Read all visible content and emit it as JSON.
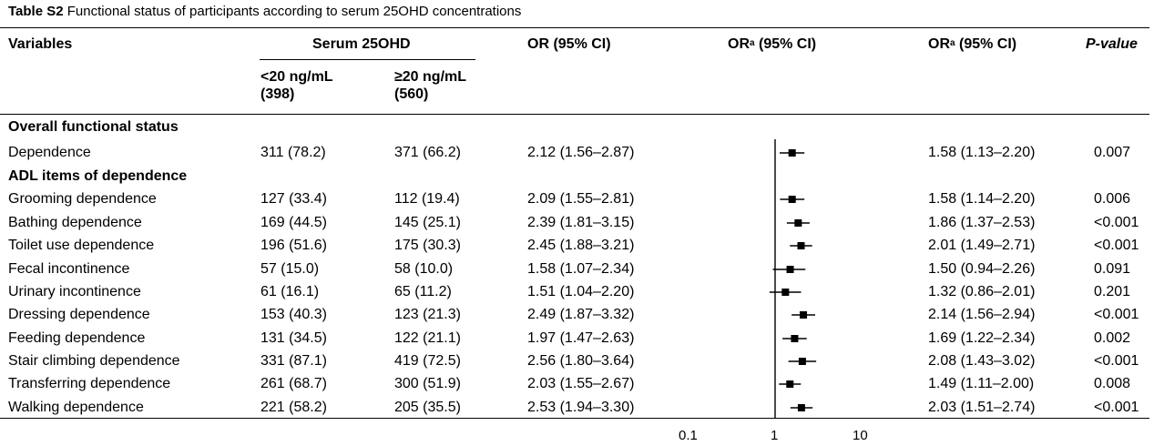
{
  "caption": {
    "label": "Table S2",
    "text": "Functional status of participants according to serum 25OHD concentrations"
  },
  "headers": {
    "variables": "Variables",
    "serum": "Serum 25OHD",
    "or_ci": "OR (95% CI)",
    "ora_forest_main": "OR",
    "ora_forest_sup": "a",
    "ora_forest_rest": " (95% CI)",
    "ora_main": "OR",
    "ora_sup": "a",
    "ora_rest": " (95% CI)",
    "pvalue": "P-value",
    "lt20_line1": "<20 ng/mL",
    "lt20_line2": "(398)",
    "ge20_line1": "≥20 ng/mL",
    "ge20_line2": "(560)"
  },
  "sections": {
    "overall": "Overall functional status",
    "adl": "ADL items of dependence"
  },
  "rows": [
    {
      "name": "Dependence",
      "lt20": "311 (78.2)",
      "ge20": "371 (66.2)",
      "or": "2.12 (1.56–2.87)",
      "ora": "1.58 (1.13–2.20)",
      "p": "0.007",
      "est": 1.58,
      "lo": 1.13,
      "hi": 2.2
    },
    {
      "name": "Grooming dependence",
      "lt20": "127 (33.4)",
      "ge20": "112 (19.4)",
      "or": "2.09 (1.55–2.81)",
      "ora": "1.58 (1.14–2.20)",
      "p": "0.006",
      "est": 1.58,
      "lo": 1.14,
      "hi": 2.2
    },
    {
      "name": "Bathing dependence",
      "lt20": "169 (44.5)",
      "ge20": "145 (25.1)",
      "or": "2.39 (1.81–3.15)",
      "ora": "1.86 (1.37–2.53)",
      "p": "<0.001",
      "est": 1.86,
      "lo": 1.37,
      "hi": 2.53
    },
    {
      "name": "Toilet use dependence",
      "lt20": "196 (51.6)",
      "ge20": "175 (30.3)",
      "or": "2.45 (1.88–3.21)",
      "ora": "2.01 (1.49–2.71)",
      "p": "<0.001",
      "est": 2.01,
      "lo": 1.49,
      "hi": 2.71
    },
    {
      "name": "Fecal incontinence",
      "lt20": "57 (15.0)",
      "ge20": "58 (10.0)",
      "or": "1.58 (1.07–2.34)",
      "ora": "1.50 (0.94–2.26)",
      "p": "0.091",
      "est": 1.5,
      "lo": 0.94,
      "hi": 2.26
    },
    {
      "name": "Urinary incontinence",
      "lt20": "61 (16.1)",
      "ge20": "65 (11.2)",
      "or": "1.51 (1.04–2.20)",
      "ora": "1.32 (0.86–2.01)",
      "p": "0.201",
      "est": 1.32,
      "lo": 0.86,
      "hi": 2.01
    },
    {
      "name": "Dressing dependence",
      "lt20": "153 (40.3)",
      "ge20": "123 (21.3)",
      "or": "2.49 (1.87–3.32)",
      "ora": "2.14 (1.56–2.94)",
      "p": "<0.001",
      "est": 2.14,
      "lo": 1.56,
      "hi": 2.94
    },
    {
      "name": "Feeding dependence",
      "lt20": "131 (34.5)",
      "ge20": "122 (21.1)",
      "or": "1.97 (1.47–2.63)",
      "ora": "1.69 (1.22–2.34)",
      "p": "0.002",
      "est": 1.69,
      "lo": 1.22,
      "hi": 2.34
    },
    {
      "name": "Stair climbing dependence",
      "lt20": "331 (87.1)",
      "ge20": "419 (72.5)",
      "or": "2.56 (1.80–3.64)",
      "ora": "2.08 (1.43–3.02)",
      "p": "<0.001",
      "est": 2.08,
      "lo": 1.43,
      "hi": 3.02
    },
    {
      "name": "Transferring dependence",
      "lt20": "261 (68.7)",
      "ge20": "300 (51.9)",
      "or": "2.03 (1.55–2.67)",
      "ora": "1.49 (1.11–2.00)",
      "p": "0.008",
      "est": 1.49,
      "lo": 1.11,
      "hi": 2.0
    },
    {
      "name": "Walking dependence",
      "lt20": "221 (58.2)",
      "ge20": "205 (35.5)",
      "or": "2.53 (1.94–3.30)",
      "ora": "2.03 (1.51–2.74)",
      "p": "<0.001",
      "est": 2.03,
      "lo": 1.51,
      "hi": 2.74
    }
  ],
  "axis": {
    "ticks": [
      "0.1",
      "1",
      "10"
    ],
    "tick_values": [
      0.1,
      1,
      10
    ]
  }
}
